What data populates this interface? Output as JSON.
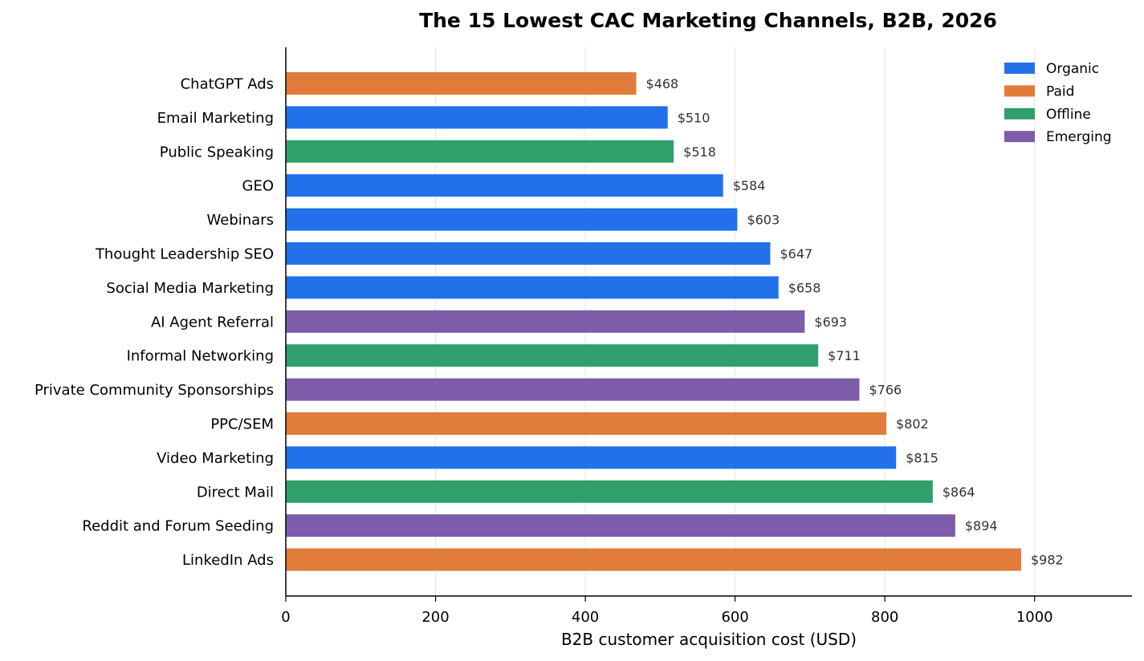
{
  "chart_data": {
    "type": "bar",
    "orientation": "horizontal",
    "title": "The 15 Lowest CAC Marketing Channels, B2B, 2026",
    "xlabel": "B2B customer acquisition cost (USD)",
    "ylabel": "",
    "xlim": [
      0,
      1130
    ],
    "xticks": [
      0,
      200,
      400,
      600,
      800,
      1000
    ],
    "grid": "vertical",
    "legend_position": "top-right",
    "value_prefix": "$",
    "categories": [
      "ChatGPT Ads",
      "Email Marketing",
      "Public Speaking",
      "GEO",
      "Webinars",
      "Thought Leadership SEO",
      "Social Media Marketing",
      "AI Agent Referral",
      "Informal Networking",
      "Private Community Sponsorships",
      "PPC/SEM",
      "Video Marketing",
      "Direct Mail",
      "Reddit and Forum Seeding",
      "LinkedIn Ads"
    ],
    "values": [
      468,
      510,
      518,
      584,
      603,
      647,
      658,
      693,
      711,
      766,
      802,
      815,
      864,
      894,
      982
    ],
    "value_labels": [
      "$468",
      "$510",
      "$518",
      "$584",
      "$603",
      "$647",
      "$658",
      "$693",
      "$711",
      "$766",
      "$802",
      "$815",
      "$864",
      "$894",
      "$982"
    ],
    "groups": [
      "Paid",
      "Organic",
      "Offline",
      "Organic",
      "Organic",
      "Organic",
      "Organic",
      "Emerging",
      "Offline",
      "Emerging",
      "Paid",
      "Organic",
      "Offline",
      "Emerging",
      "Paid"
    ],
    "legend": [
      {
        "name": "Organic",
        "color": "#2271EA"
      },
      {
        "name": "Paid",
        "color": "#E07B3A"
      },
      {
        "name": "Offline",
        "color": "#2FA06C"
      },
      {
        "name": "Emerging",
        "color": "#7D5CAA"
      }
    ]
  }
}
